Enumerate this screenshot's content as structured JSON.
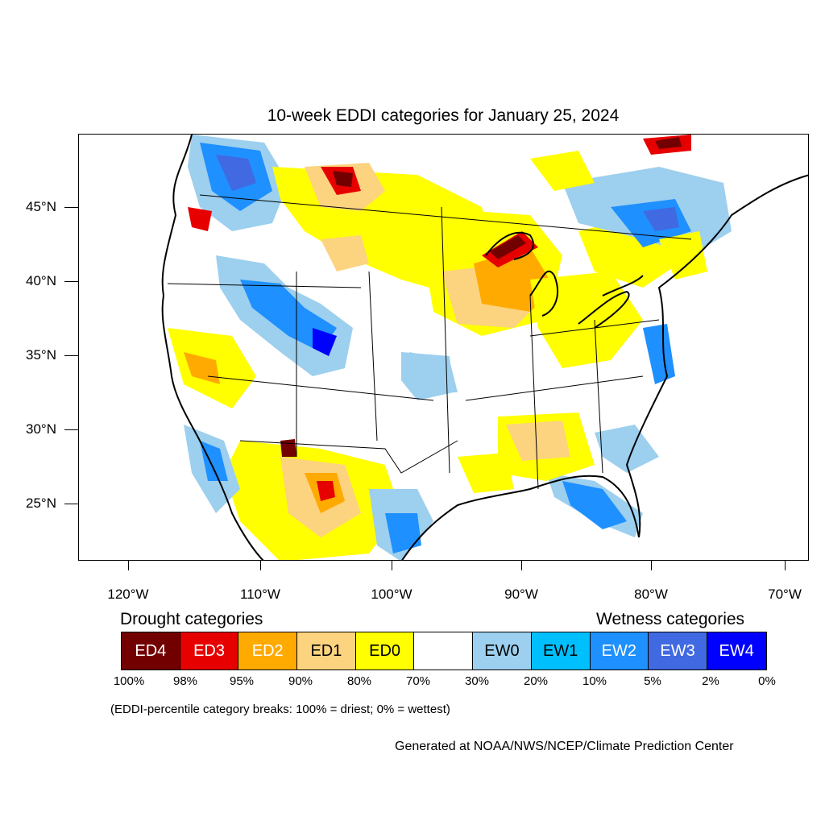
{
  "title": "10-week EDDI categories for January 25, 2024",
  "latitude_labels": [
    "45°N",
    "40°N",
    "35°N",
    "30°N",
    "25°N"
  ],
  "longitude_labels": [
    "120°W",
    "110°W",
    "100°W",
    "90°W",
    "80°W",
    "70°W"
  ],
  "legend": {
    "drought_heading": "Drought categories",
    "wetness_heading": "Wetness categories",
    "categories": [
      {
        "label": "ED4",
        "color": "#730000"
      },
      {
        "label": "ED3",
        "color": "#e60000"
      },
      {
        "label": "ED2",
        "color": "#ffaa00"
      },
      {
        "label": "ED1",
        "color": "#fcd37f"
      },
      {
        "label": "ED0",
        "color": "#ffff00"
      },
      {
        "label": "",
        "color": "#ffffff"
      },
      {
        "label": "EW0",
        "color": "#9dcfee"
      },
      {
        "label": "EW1",
        "color": "#00bfff"
      },
      {
        "label": "EW2",
        "color": "#1e90ff"
      },
      {
        "label": "EW3",
        "color": "#4169e1"
      },
      {
        "label": "EW4",
        "color": "#0000ff"
      }
    ],
    "percentiles": [
      "100%",
      "98%",
      "95%",
      "90%",
      "80%",
      "70%",
      "30%",
      "20%",
      "10%",
      "5%",
      "2%",
      "0%"
    ]
  },
  "note": "(EDDI-percentile category breaks: 100% = driest; 0% = wettest)",
  "credit": "Generated at NOAA/NWS/NCEP/Climate Prediction Center"
}
